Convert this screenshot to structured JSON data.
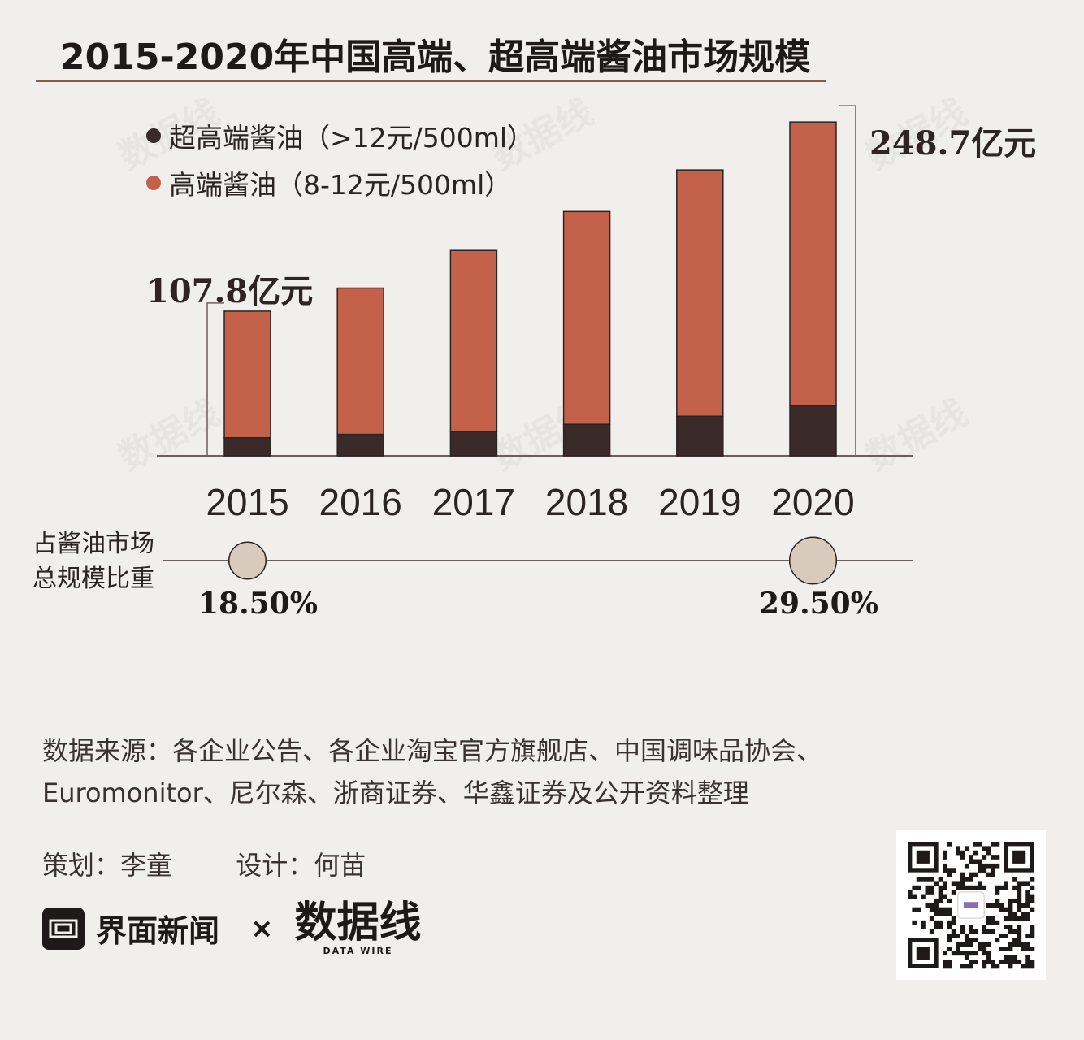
{
  "title": "2015-2020年中国高端、超高端酱油市场规模",
  "legend": [
    {
      "label": "超高端酱油（>12元/500ml）",
      "color": "#3a2a2a"
    },
    {
      "label": "高端酱油（8-12元/500ml）",
      "color": "#c4614b"
    }
  ],
  "callouts": {
    "first": "107.8亿元",
    "last": "248.7亿元"
  },
  "chart_data": {
    "type": "bar",
    "stacked": true,
    "title": "2015-2020年中国高端、超高端酱油市场规模",
    "categories": [
      "2015",
      "2016",
      "2017",
      "2018",
      "2019",
      "2020"
    ],
    "series": [
      {
        "name": "超高端酱油（>12元/500ml）",
        "color": "#3a2a2a",
        "values": [
          13.5,
          16.0,
          18.0,
          23.5,
          29.5,
          37.5
        ]
      },
      {
        "name": "高端酱油（8-12元/500ml）",
        "color": "#c4614b",
        "values": [
          94.3,
          109.0,
          135.0,
          158.5,
          183.5,
          211.2
        ]
      }
    ],
    "totals": [
      107.8,
      125.0,
      153.0,
      182.0,
      213.0,
      248.7
    ],
    "unit": "亿元",
    "ylim": [
      0,
      250
    ],
    "grid": false,
    "legend_position": "top-left"
  },
  "share": {
    "label_lines": [
      "占酱油市场",
      "总规模比重"
    ],
    "first_value": "18.50%",
    "last_value": "29.50%",
    "first_pct": 18.5,
    "last_pct": 29.5
  },
  "source": {
    "line1": "数据来源：各企业公告、各企业淘宝官方旗舰店、中国调味品协会、",
    "line2": "Euromonitor、尼尔森、浙商证券、华鑫证券及公开资料整理"
  },
  "credits": {
    "planner": "策划：李童",
    "designer": "设计：何苗"
  },
  "brand": {
    "name": "界面新闻",
    "times": "×",
    "partner": "数据线",
    "partner_sub": "DATA WIRE"
  },
  "watermark_text": "数据线"
}
